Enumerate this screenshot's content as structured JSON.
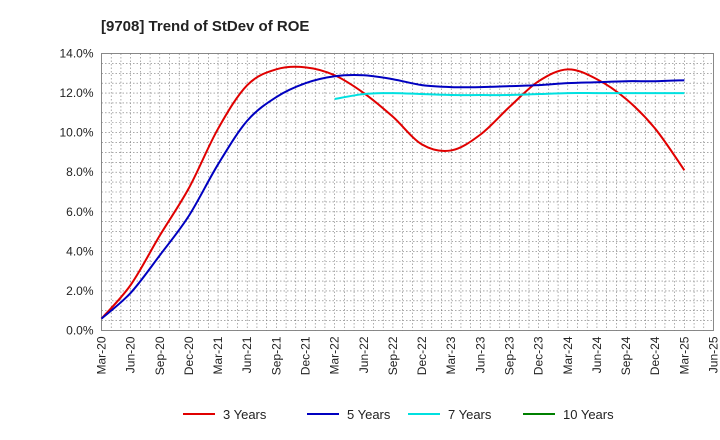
{
  "chart_data": {
    "type": "line",
    "title": "[9708]  Trend of StDev of ROE",
    "xlabel": "",
    "ylabel": "",
    "grid": true,
    "legend_position": "bottom",
    "x_tick_labels": [
      "Mar-20",
      "Jun-20",
      "Sep-20",
      "Dec-20",
      "Mar-21",
      "Jun-21",
      "Sep-21",
      "Dec-21",
      "Mar-22",
      "Jun-22",
      "Sep-22",
      "Dec-22",
      "Mar-23",
      "Jun-23",
      "Sep-23",
      "Dec-23",
      "Mar-24",
      "Jun-24",
      "Sep-24",
      "Dec-24",
      "Mar-25",
      "Jun-25"
    ],
    "y_tick_labels": [
      "0.0%",
      "2.0%",
      "4.0%",
      "6.0%",
      "8.0%",
      "10.0%",
      "12.0%",
      "14.0%"
    ],
    "ylim": [
      0,
      14
    ],
    "y_unit": "%",
    "series": [
      {
        "name": "3 Years",
        "color": "#e00000",
        "points": [
          [
            "Mar-20",
            0.6
          ],
          [
            "Jun-20",
            2.3
          ],
          [
            "Sep-20",
            4.8
          ],
          [
            "Dec-20",
            7.2
          ],
          [
            "Mar-21",
            10.2
          ],
          [
            "Jun-21",
            12.4
          ],
          [
            "Sep-21",
            13.2
          ],
          [
            "Dec-21",
            13.3
          ],
          [
            "Mar-22",
            12.9
          ],
          [
            "Jun-22",
            12.0
          ],
          [
            "Sep-22",
            10.8
          ],
          [
            "Dec-22",
            9.4
          ],
          [
            "Mar-23",
            9.1
          ],
          [
            "Jun-23",
            9.9
          ],
          [
            "Sep-23",
            11.3
          ],
          [
            "Dec-23",
            12.6
          ],
          [
            "Mar-24",
            13.2
          ],
          [
            "Jun-24",
            12.7
          ],
          [
            "Sep-24",
            11.7
          ],
          [
            "Dec-24",
            10.2
          ],
          [
            "Mar-25",
            8.1
          ]
        ]
      },
      {
        "name": "5 Years",
        "color": "#0000c0",
        "points": [
          [
            "Mar-20",
            0.6
          ],
          [
            "Jun-20",
            1.9
          ],
          [
            "Sep-20",
            3.8
          ],
          [
            "Dec-20",
            5.8
          ],
          [
            "Mar-21",
            8.4
          ],
          [
            "Jun-21",
            10.6
          ],
          [
            "Sep-21",
            11.8
          ],
          [
            "Dec-21",
            12.5
          ],
          [
            "Mar-22",
            12.85
          ],
          [
            "Jun-22",
            12.9
          ],
          [
            "Sep-22",
            12.7
          ],
          [
            "Dec-22",
            12.4
          ],
          [
            "Mar-23",
            12.3
          ],
          [
            "Jun-23",
            12.3
          ],
          [
            "Sep-23",
            12.35
          ],
          [
            "Dec-23",
            12.4
          ],
          [
            "Mar-24",
            12.5
          ],
          [
            "Jun-24",
            12.55
          ],
          [
            "Sep-24",
            12.6
          ],
          [
            "Dec-24",
            12.6
          ],
          [
            "Mar-25",
            12.65
          ]
        ]
      },
      {
        "name": "7 Years",
        "color": "#00e0e0",
        "points": [
          [
            "Mar-22",
            11.7
          ],
          [
            "Jun-22",
            11.95
          ],
          [
            "Sep-22",
            12.0
          ],
          [
            "Dec-22",
            11.95
          ],
          [
            "Mar-23",
            11.9
          ],
          [
            "Jun-23",
            11.9
          ],
          [
            "Sep-23",
            11.9
          ],
          [
            "Dec-23",
            11.95
          ],
          [
            "Mar-24",
            12.0
          ],
          [
            "Jun-24",
            12.0
          ],
          [
            "Sep-24",
            12.0
          ],
          [
            "Dec-24",
            12.0
          ],
          [
            "Mar-25",
            12.0
          ]
        ]
      },
      {
        "name": "10 Years",
        "color": "#008000",
        "points": []
      }
    ]
  }
}
